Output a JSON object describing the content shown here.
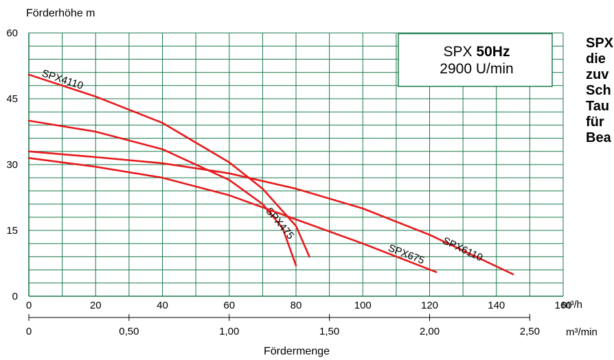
{
  "chart_data": {
    "type": "line",
    "ylabel": "Förderhöhe m",
    "xlabel": "Fördermenge",
    "x_unit": "m³/h",
    "x2_unit": "m³/min",
    "xlim": [
      0,
      160
    ],
    "ylim": [
      0,
      60
    ],
    "x_ticks": [
      "0",
      "20",
      "40",
      "60",
      "80",
      "100",
      "120",
      "140",
      "160"
    ],
    "y_ticks": [
      "0",
      "15",
      "30",
      "45",
      "60"
    ],
    "x2_ticks": [
      {
        "label": "0",
        "value": 0
      },
      {
        "label": "0,50",
        "value": 0.5
      },
      {
        "label": "1,00",
        "value": 1.0
      },
      {
        "label": "1,50",
        "value": 1.5
      },
      {
        "label": "2,00",
        "value": 2.0
      },
      {
        "label": "2,50",
        "value": 2.5
      }
    ],
    "grid": true,
    "box_title": "SPX",
    "box_title_bold": "50Hz",
    "box_subtitle": "2900 U/min",
    "side_text": [
      "SPX",
      "die",
      "zuv",
      "Sch",
      "Tau",
      "für",
      "Bea"
    ],
    "curve_color": "#e8191c",
    "grid_color": "#1a7a4c",
    "series": [
      {
        "name": "SPX4110",
        "x": [
          0,
          20,
          40,
          60,
          70,
          80,
          84
        ],
        "y": [
          50.5,
          45.5,
          39.5,
          30.5,
          24.5,
          16,
          9
        ]
      },
      {
        "name": "SPX475",
        "x": [
          0,
          20,
          40,
          60,
          70,
          76,
          80
        ],
        "y": [
          40,
          37.5,
          33.5,
          26.5,
          21,
          15.5,
          7
        ]
      },
      {
        "name": "SPX675",
        "x": [
          0,
          20,
          40,
          60,
          80,
          100,
          122
        ],
        "y": [
          31.5,
          29.5,
          27,
          23,
          17.5,
          12,
          5.5
        ]
      },
      {
        "name": "SPX6110",
        "x": [
          0,
          20,
          40,
          60,
          80,
          100,
          120,
          145
        ],
        "y": [
          33,
          31.7,
          30.3,
          28,
          24.5,
          20,
          14,
          5
        ]
      }
    ]
  }
}
